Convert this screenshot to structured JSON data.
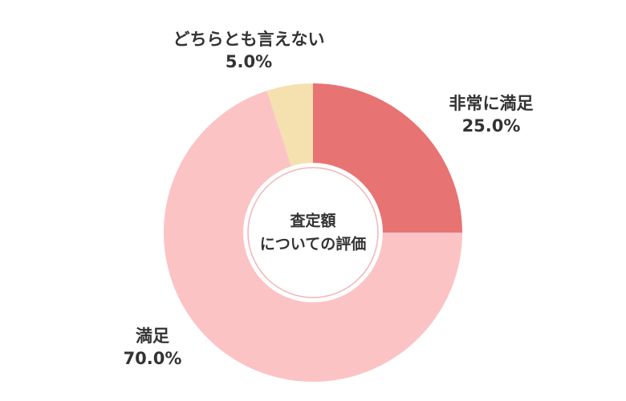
{
  "chart_data": {
    "type": "donut",
    "center_text": [
      "査定額",
      "についての評価"
    ],
    "categories": [
      "非常に満足",
      "満足",
      "どちらとも言えない"
    ],
    "values": [
      25,
      70,
      5
    ],
    "value_labels": [
      "25.0%",
      "70.0%",
      "5.0%"
    ],
    "colors": [
      "#e87373",
      "#fcc3c4",
      "#f5e0b0"
    ]
  }
}
